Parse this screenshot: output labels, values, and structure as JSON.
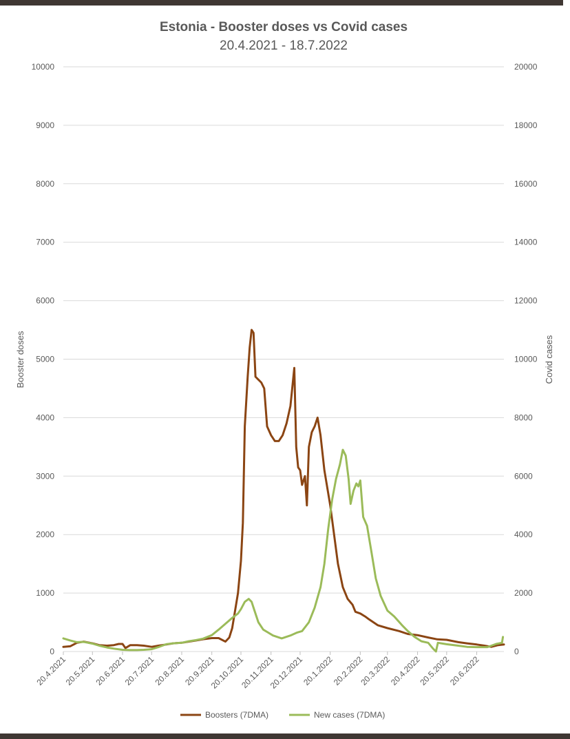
{
  "chart_data": {
    "type": "line",
    "title": "Estonia - Booster doses vs Covid cases",
    "subtitle": "20.4.2021 - 18.7.2022",
    "ylabel": "Booster doses",
    "y2label": "Covid cases",
    "ylim": [
      0,
      10000
    ],
    "y2lim": [
      0,
      20000
    ],
    "y_ticks": [
      0,
      1000,
      2000,
      3000,
      4000,
      5000,
      6000,
      7000,
      8000,
      9000,
      10000
    ],
    "y2_ticks": [
      0,
      2000,
      4000,
      6000,
      8000,
      10000,
      12000,
      14000,
      16000,
      18000,
      20000
    ],
    "x_start": "20.4.2021",
    "x_end": "18.7.2022",
    "x_ticks": [
      "20.4.2021",
      "20.5.2021",
      "20.6.2021",
      "20.7.2021",
      "20.8.2021",
      "20.9.2021",
      "20.10.2021",
      "20.11.2021",
      "20.12.2021",
      "20.1.2022",
      "20.2.2022",
      "20.3.2022",
      "20.4.2022",
      "20.5.2022",
      "20.6.2022"
    ],
    "grid": true,
    "legend_position": "bottom",
    "series": [
      {
        "name": "Boosters (7DMA)",
        "axis": "left",
        "color": "#8b4513",
        "points": [
          [
            "20.4.2021",
            80
          ],
          [
            "27.4.2021",
            90
          ],
          [
            "4.5.2021",
            150
          ],
          [
            "11.5.2021",
            170
          ],
          [
            "20.5.2021",
            140
          ],
          [
            "27.5.2021",
            110
          ],
          [
            "4.6.2021",
            100
          ],
          [
            "11.6.2021",
            110
          ],
          [
            "16.6.2021",
            130
          ],
          [
            "20.6.2021",
            130
          ],
          [
            "23.6.2021",
            60
          ],
          [
            "28.6.2021",
            110
          ],
          [
            "5.7.2021",
            110
          ],
          [
            "12.7.2021",
            100
          ],
          [
            "20.7.2021",
            80
          ],
          [
            "27.7.2021",
            100
          ],
          [
            "4.8.2021",
            120
          ],
          [
            "11.8.2021",
            140
          ],
          [
            "20.8.2021",
            150
          ],
          [
            "27.8.2021",
            170
          ],
          [
            "4.9.2021",
            190
          ],
          [
            "11.9.2021",
            210
          ],
          [
            "20.9.2021",
            230
          ],
          [
            "27.9.2021",
            230
          ],
          [
            "4.10.2021",
            170
          ],
          [
            "8.10.2021",
            240
          ],
          [
            "11.10.2021",
            400
          ],
          [
            "14.10.2021",
            700
          ],
          [
            "17.10.2021",
            1000
          ],
          [
            "20.10.2021",
            1550
          ],
          [
            "22.10.2021",
            2200
          ],
          [
            "24.10.2021",
            3850
          ],
          [
            "27.10.2021",
            4700
          ],
          [
            "29.10.2021",
            5200
          ],
          [
            "31.10.2021",
            5500
          ],
          [
            "2.11.2021",
            5450
          ],
          [
            "4.11.2021",
            4700
          ],
          [
            "7.11.2021",
            4650
          ],
          [
            "10.11.2021",
            4600
          ],
          [
            "13.11.2021",
            4500
          ],
          [
            "16.11.2021",
            3850
          ],
          [
            "20.11.2021",
            3700
          ],
          [
            "24.11.2021",
            3600
          ],
          [
            "28.11.2021",
            3600
          ],
          [
            "2.12.2021",
            3700
          ],
          [
            "6.12.2021",
            3900
          ],
          [
            "10.12.2021",
            4200
          ],
          [
            "14.12.2021",
            4850
          ],
          [
            "16.12.2021",
            3500
          ],
          [
            "18.12.2021",
            3150
          ],
          [
            "20.12.2021",
            3100
          ],
          [
            "22.12.2021",
            2850
          ],
          [
            "25.12.2021",
            3000
          ],
          [
            "27.12.2021",
            2500
          ],
          [
            "29.12.2021",
            3500
          ],
          [
            "1.1.2022",
            3750
          ],
          [
            "4.1.2022",
            3850
          ],
          [
            "7.1.2022",
            4000
          ],
          [
            "10.1.2022",
            3700
          ],
          [
            "14.1.2022",
            3100
          ],
          [
            "20.1.2022",
            2500
          ],
          [
            "24.1.2022",
            2000
          ],
          [
            "28.1.2022",
            1500
          ],
          [
            "2.2.2022",
            1100
          ],
          [
            "7.2.2022",
            900
          ],
          [
            "12.2.2022",
            800
          ],
          [
            "15.2.2022",
            680
          ],
          [
            "20.2.2022",
            650
          ],
          [
            "25.2.2022",
            600
          ],
          [
            "1.3.2022",
            550
          ],
          [
            "10.3.2022",
            450
          ],
          [
            "20.3.2022",
            400
          ],
          [
            "1.4.2022",
            350
          ],
          [
            "10.4.2022",
            300
          ],
          [
            "20.4.2022",
            280
          ],
          [
            "1.5.2022",
            240
          ],
          [
            "10.5.2022",
            210
          ],
          [
            "20.5.2022",
            200
          ],
          [
            "1.6.2022",
            160
          ],
          [
            "10.6.2022",
            140
          ],
          [
            "20.6.2022",
            120
          ],
          [
            "28.6.2022",
            100
          ],
          [
            "5.7.2022",
            80
          ],
          [
            "12.7.2022",
            110
          ],
          [
            "18.7.2022",
            120
          ]
        ]
      },
      {
        "name": "New cases (7DMA)",
        "axis": "right",
        "color": "#9bbb59",
        "points": [
          [
            "20.4.2021",
            450
          ],
          [
            "27.4.2021",
            380
          ],
          [
            "4.5.2021",
            320
          ],
          [
            "11.5.2021",
            330
          ],
          [
            "20.5.2021",
            270
          ],
          [
            "27.5.2021",
            200
          ],
          [
            "4.6.2021",
            140
          ],
          [
            "11.6.2021",
            100
          ],
          [
            "20.6.2021",
            60
          ],
          [
            "27.6.2021",
            50
          ],
          [
            "5.7.2021",
            50
          ],
          [
            "12.7.2021",
            60
          ],
          [
            "20.7.2021",
            80
          ],
          [
            "27.7.2021",
            150
          ],
          [
            "4.8.2021",
            250
          ],
          [
            "11.8.2021",
            280
          ],
          [
            "20.8.2021",
            300
          ],
          [
            "27.8.2021",
            350
          ],
          [
            "4.9.2021",
            390
          ],
          [
            "11.9.2021",
            440
          ],
          [
            "20.9.2021",
            560
          ],
          [
            "27.9.2021",
            750
          ],
          [
            "4.10.2021",
            950
          ],
          [
            "11.10.2021",
            1150
          ],
          [
            "17.10.2021",
            1300
          ],
          [
            "20.10.2021",
            1450
          ],
          [
            "24.10.2021",
            1700
          ],
          [
            "28.10.2021",
            1800
          ],
          [
            "31.10.2021",
            1700
          ],
          [
            "3.11.2021",
            1400
          ],
          [
            "7.11.2021",
            1000
          ],
          [
            "12.11.2021",
            750
          ],
          [
            "17.11.2021",
            650
          ],
          [
            "22.11.2021",
            550
          ],
          [
            "1.12.2021",
            450
          ],
          [
            "10.12.2021",
            550
          ],
          [
            "17.12.2021",
            650
          ],
          [
            "22.12.2021",
            700
          ],
          [
            "29.12.2021",
            1000
          ],
          [
            "4.1.2022",
            1500
          ],
          [
            "10.1.2022",
            2200
          ],
          [
            "14.1.2022",
            3000
          ],
          [
            "18.1.2022",
            4200
          ],
          [
            "22.1.2022",
            5200
          ],
          [
            "26.1.2022",
            5900
          ],
          [
            "30.1.2022",
            6400
          ],
          [
            "2.2.2022",
            6900
          ],
          [
            "5.2.2022",
            6700
          ],
          [
            "8.2.2022",
            5900
          ],
          [
            "10.2.2022",
            5050
          ],
          [
            "13.2.2022",
            5500
          ],
          [
            "16.2.2022",
            5750
          ],
          [
            "18.2.2022",
            5650
          ],
          [
            "20.2.2022",
            5850
          ],
          [
            "23.2.2022",
            4600
          ],
          [
            "27.2.2022",
            4300
          ],
          [
            "3.3.2022",
            3500
          ],
          [
            "8.3.2022",
            2500
          ],
          [
            "13.3.2022",
            1900
          ],
          [
            "20.3.2022",
            1400
          ],
          [
            "27.3.2022",
            1200
          ],
          [
            "4.4.2022",
            900
          ],
          [
            "10.4.2022",
            700
          ],
          [
            "17.4.2022",
            500
          ],
          [
            "24.4.2022",
            350
          ],
          [
            "1.5.2022",
            300
          ],
          [
            "6.5.2022",
            100
          ],
          [
            "9.5.2022",
            0
          ],
          [
            "11.5.2022",
            300
          ],
          [
            "20.5.2022",
            250
          ],
          [
            "1.6.2022",
            200
          ],
          [
            "10.6.2022",
            160
          ],
          [
            "20.6.2022",
            150
          ],
          [
            "1.7.2022",
            150
          ],
          [
            "10.7.2022",
            260
          ],
          [
            "16.7.2022",
            300
          ],
          [
            "17.7.2022",
            500
          ]
        ]
      }
    ]
  }
}
